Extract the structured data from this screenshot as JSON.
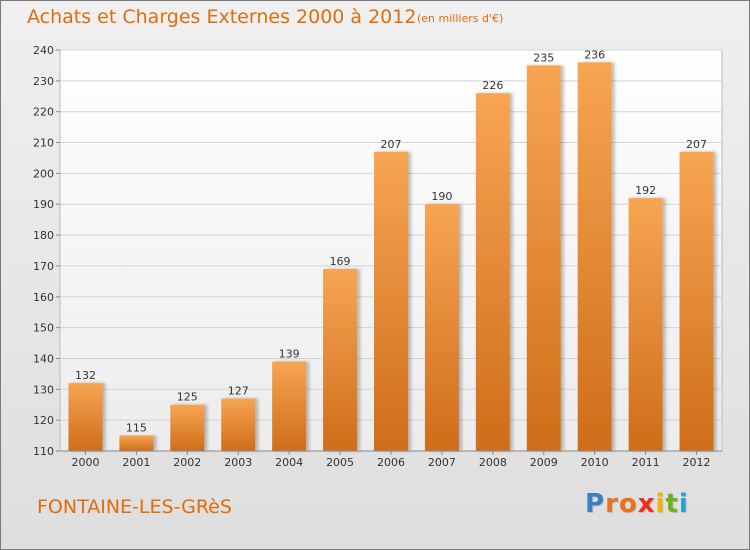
{
  "header": {
    "title": "Achats et Charges Externes 2000 à 2012",
    "unit": "(en milliers d'€)"
  },
  "footer": {
    "commune": "FONTAINE-LES-GRèS",
    "logo_letters": [
      "P",
      "r",
      "o",
      "x",
      "i",
      "t",
      "i"
    ],
    "logo_colors": [
      "#3a7fc2",
      "#e8731c",
      "#e8731c",
      "#e8301c",
      "#f0b400",
      "#6fb11c",
      "#2aa0d8"
    ]
  },
  "chart_data": {
    "type": "bar",
    "categories": [
      "2000",
      "2001",
      "2002",
      "2003",
      "2004",
      "2005",
      "2006",
      "2007",
      "2008",
      "2009",
      "2010",
      "2011",
      "2012"
    ],
    "values": [
      132,
      115,
      125,
      127,
      139,
      169,
      207,
      190,
      226,
      235,
      236,
      192,
      207
    ],
    "title": "Achats et Charges Externes 2000 à 2012",
    "unit_label": "(en milliers d'€)",
    "xlabel": "",
    "ylabel": "",
    "ylim": [
      110,
      240
    ],
    "yticks": [
      110,
      120,
      130,
      140,
      150,
      160,
      170,
      180,
      190,
      200,
      210,
      220,
      230,
      240
    ],
    "grid": true,
    "bar_color": "#f0913a",
    "label_color": "#e36c0a"
  }
}
